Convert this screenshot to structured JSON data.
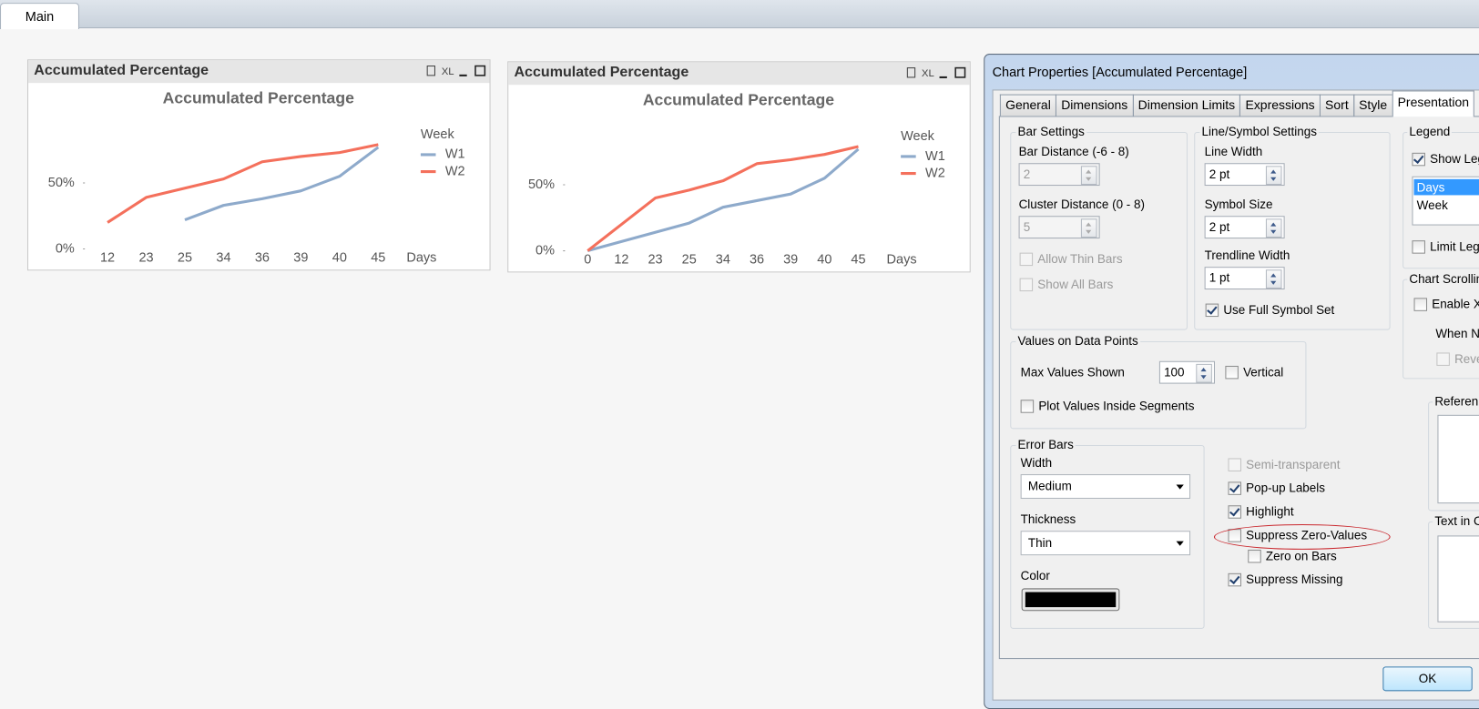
{
  "tabs": [
    "Main"
  ],
  "panels": [
    {
      "caption": "Accumulated Percentage",
      "export_label": "XL"
    },
    {
      "caption": "Accumulated Percentage",
      "export_label": "XL"
    }
  ],
  "chart_data": [
    {
      "type": "line",
      "title": "Accumulated Percentage",
      "x_label": "Days",
      "legend_title": "Week",
      "legend": "right",
      "grid": false,
      "categories": [
        "12",
        "23",
        "25",
        "34",
        "36",
        "39",
        "40",
        "45"
      ],
      "series": [
        {
          "name": "W1",
          "color": "#8eaacb",
          "values": [
            null,
            null,
            22,
            33,
            38,
            44,
            55,
            77
          ]
        },
        {
          "name": "W2",
          "color": "#f4705c",
          "values": [
            20,
            39,
            46,
            53,
            66,
            70,
            73,
            79
          ]
        }
      ],
      "ylim": [
        0,
        80
      ],
      "yticks": [
        {
          "value": 0,
          "label": "0%"
        },
        {
          "value": 50,
          "label": "50%"
        }
      ]
    },
    {
      "type": "line",
      "title": "Accumulated Percentage",
      "x_label": "Days",
      "legend_title": "Week",
      "legend": "right",
      "grid": false,
      "categories": [
        "0",
        "12",
        "23",
        "25",
        "34",
        "36",
        "39",
        "40",
        "45"
      ],
      "series": [
        {
          "name": "W1",
          "color": "#8eaacb",
          "values": [
            0,
            7,
            14,
            21,
            33,
            38,
            43,
            55,
            77
          ]
        },
        {
          "name": "W2",
          "color": "#f4705c",
          "values": [
            0,
            20,
            40,
            46,
            53,
            66,
            69,
            73,
            79
          ]
        }
      ],
      "ylim": [
        0,
        80
      ],
      "yticks": [
        {
          "value": 0,
          "label": "0%"
        },
        {
          "value": 50,
          "label": "50%"
        }
      ]
    }
  ],
  "dialog": {
    "title": "Chart Properties [Accumulated Percentage]",
    "tabs": [
      {
        "label": "General"
      },
      {
        "label": "Dimensions"
      },
      {
        "label": "Dimension Limits"
      },
      {
        "label": "Expressions"
      },
      {
        "label": "Sort"
      },
      {
        "label": "Style"
      },
      {
        "label": "Presentation",
        "selected": true
      }
    ],
    "bar_settings": {
      "title": "Bar Settings",
      "disabled": true,
      "bar_distance_label": "Bar Distance (-6 - 8)",
      "bar_distance": 2,
      "cluster_distance_label": "Cluster Distance (0 - 8)",
      "cluster_distance": 5,
      "allow_thin_bars": {
        "label": "Allow Thin Bars",
        "checked": false,
        "disabled": true
      },
      "show_all_bars": {
        "label": "Show All Bars",
        "checked": false,
        "disabled": true
      }
    },
    "line_symbol": {
      "title": "Line/Symbol Settings",
      "line_width_label": "Line Width",
      "line_width": "2 pt",
      "symbol_size_label": "Symbol Size",
      "symbol_size": "2 pt",
      "trendline_width_label": "Trendline Width",
      "trendline_width": "1 pt",
      "full_symbol_set": {
        "label": "Use Full Symbol Set",
        "checked": true
      }
    },
    "legend": {
      "title": "Legend",
      "show_legend": {
        "label": "Show Leg",
        "checked": true
      },
      "items": [
        "Days",
        "Week"
      ],
      "limit_legend": {
        "label": "Limit Leg",
        "checked": false
      }
    },
    "chart_scrolling": {
      "title": "Chart Scrollin",
      "enable_x": {
        "label": "Enable X",
        "checked": false
      },
      "when_n": "When N",
      "reverse": {
        "label": "Reve",
        "checked": false,
        "disabled": true
      }
    },
    "values_on_data_points": {
      "title": "Values on Data Points",
      "max_values_label": "Max Values Shown",
      "max_values": 100,
      "vertical": {
        "label": "Vertical",
        "checked": false
      },
      "plot_inside": {
        "label": "Plot Values Inside Segments",
        "checked": false
      }
    },
    "error_bars": {
      "title": "Error Bars",
      "width_label": "Width",
      "width": "Medium",
      "thickness_label": "Thickness",
      "thickness": "Thin",
      "color_label": "Color",
      "color": "#000000"
    },
    "options": {
      "semi_transparent": {
        "label": "Semi-transparent",
        "checked": false,
        "disabled": true
      },
      "popup_labels": {
        "label": "Pop-up Labels",
        "checked": true
      },
      "highlight": {
        "label": "Highlight",
        "checked": true
      },
      "suppress_zero": {
        "label": "Suppress Zero-Values",
        "checked": false,
        "highlighted": true
      },
      "zero_on_bars": {
        "label": "Zero on Bars",
        "checked": false
      },
      "suppress_missing": {
        "label": "Suppress Missing",
        "checked": true
      }
    },
    "reference_lines": "Referen",
    "text_in_chart": "Text in C",
    "ok": "OK"
  }
}
